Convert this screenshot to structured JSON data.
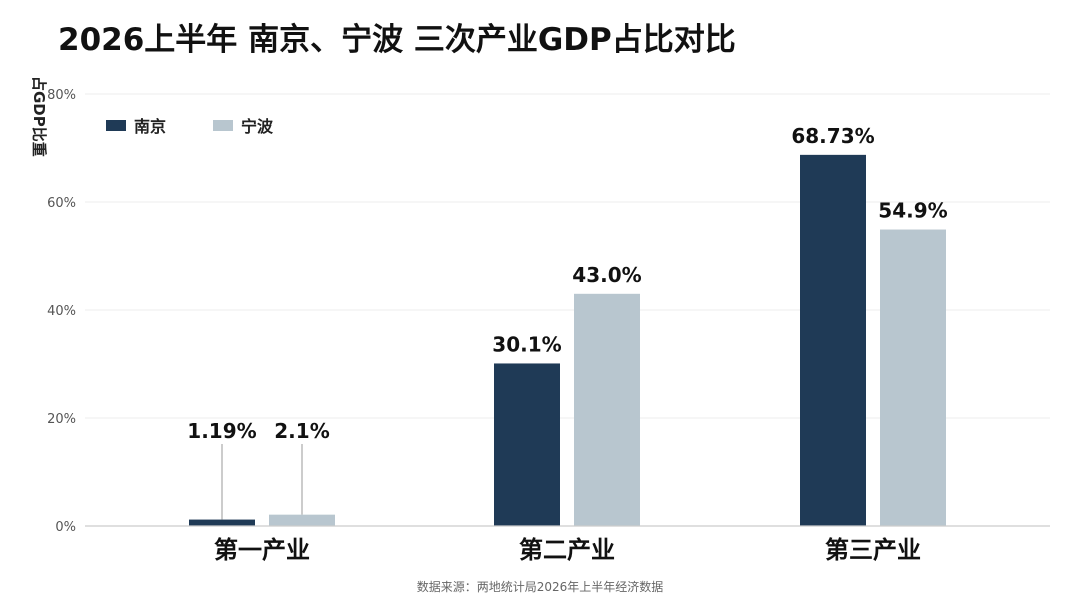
{
  "chart_data": {
    "type": "bar",
    "title": "2026上半年 南京、宁波 三次产业GDP占比对比",
    "ylabel": "占GDP比重",
    "xlabel": "",
    "ylim": [
      0,
      80
    ],
    "yticks": [
      0,
      20,
      40,
      60,
      80
    ],
    "ytick_labels": [
      "0%",
      "20%",
      "40%",
      "60%",
      "80%"
    ],
    "categories": [
      "第一产业",
      "第二产业",
      "第三产业"
    ],
    "series": [
      {
        "name": "南京",
        "color": "#1f3a56",
        "values": [
          1.19,
          30.1,
          68.73
        ],
        "labels": [
          "1.19%",
          "30.1%",
          "68.73%"
        ]
      },
      {
        "name": "宁波",
        "color": "#b8c6cf",
        "values": [
          2.1,
          43.0,
          54.9
        ],
        "labels": [
          "2.1%",
          "43.0%",
          "54.9%"
        ]
      }
    ],
    "legend_position": "top-left",
    "grid": true,
    "source": "数据来源：两地统计局2026年上半年经济数据"
  }
}
